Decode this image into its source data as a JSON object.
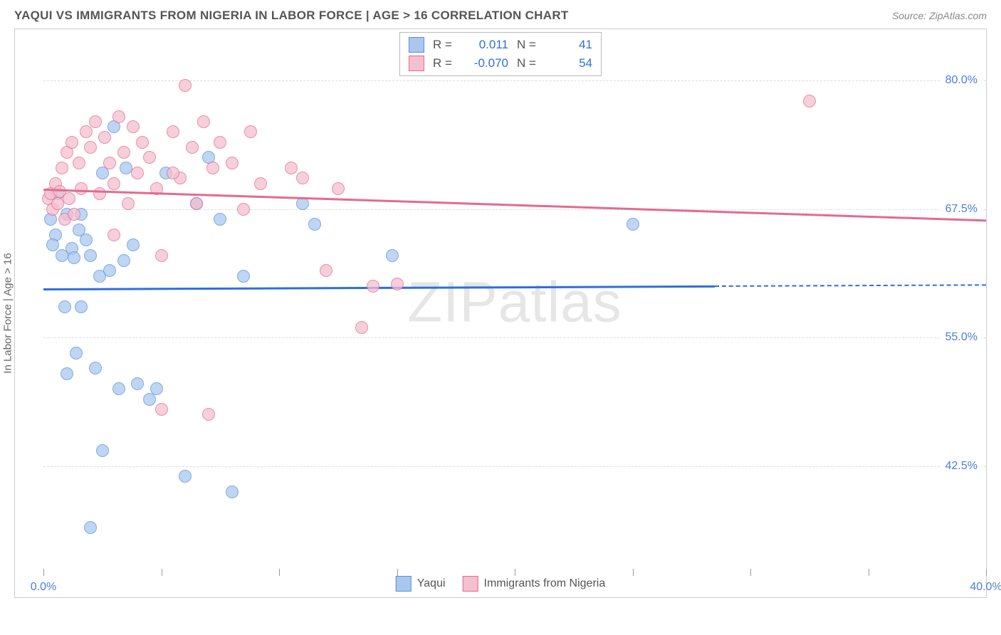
{
  "title": "YAQUI VS IMMIGRANTS FROM NIGERIA IN LABOR FORCE | AGE > 16 CORRELATION CHART",
  "source": "Source: ZipAtlas.com",
  "y_axis_label": "In Labor Force | Age > 16",
  "watermark": "ZIPatlas",
  "chart": {
    "type": "scatter",
    "xlim": [
      0,
      40
    ],
    "ylim": [
      32.5,
      85
    ],
    "x_tick_positions": [
      0,
      5,
      10,
      15,
      20,
      25,
      30,
      35,
      40
    ],
    "x_tick_labels": {
      "0": "0.0%",
      "40": "40.0%"
    },
    "y_gridlines": [
      42.5,
      55.0,
      67.5,
      80.0
    ],
    "y_tick_labels": [
      "42.5%",
      "55.0%",
      "67.5%",
      "80.0%"
    ],
    "grid_color": "#dddddd",
    "background_color": "#ffffff",
    "border_color": "#cccccc",
    "axis_label_color": "#4a7fd8",
    "axis_text_color": "#666666",
    "marker_radius": 9,
    "marker_stroke_width": 1.4,
    "marker_fill_opacity": 0.35,
    "series": [
      {
        "key": "yaqui",
        "label": "Yaqui",
        "color_fill": "#a9c7ef",
        "color_stroke": "#5a8fd6",
        "r": "0.011",
        "n": "41",
        "trend": {
          "y_start": 59.8,
          "y_end": 60.2,
          "x_max_solid": 28.5,
          "color": "#2d6fe0",
          "dash_after": true
        },
        "points": [
          [
            0.3,
            66.5
          ],
          [
            0.5,
            65.0
          ],
          [
            0.6,
            69.0
          ],
          [
            0.8,
            63.0
          ],
          [
            0.9,
            58.0
          ],
          [
            1.0,
            67.0
          ],
          [
            1.2,
            63.7
          ],
          [
            1.3,
            62.8
          ],
          [
            1.4,
            53.5
          ],
          [
            1.5,
            65.5
          ],
          [
            1.6,
            67.0
          ],
          [
            1.8,
            64.5
          ],
          [
            1.6,
            58.0
          ],
          [
            2.0,
            63.0
          ],
          [
            2.2,
            52.0
          ],
          [
            2.4,
            61.0
          ],
          [
            2.5,
            71.0
          ],
          [
            2.8,
            61.5
          ],
          [
            3.0,
            75.5
          ],
          [
            3.2,
            50.0
          ],
          [
            3.4,
            62.5
          ],
          [
            3.5,
            71.5
          ],
          [
            3.8,
            64.0
          ],
          [
            4.0,
            50.5
          ],
          [
            4.8,
            50.0
          ],
          [
            5.2,
            71.0
          ],
          [
            6.0,
            41.5
          ],
          [
            6.5,
            68.0
          ],
          [
            7.0,
            72.5
          ],
          [
            7.5,
            66.5
          ],
          [
            8.0,
            40.0
          ],
          [
            8.5,
            61.0
          ],
          [
            11.0,
            68.0
          ],
          [
            11.5,
            66.0
          ],
          [
            14.8,
            63.0
          ],
          [
            2.0,
            36.5
          ],
          [
            2.5,
            44.0
          ],
          [
            4.5,
            49.0
          ],
          [
            1.0,
            51.5
          ],
          [
            25.0,
            66.0
          ],
          [
            0.4,
            64.0
          ]
        ]
      },
      {
        "key": "nigeria",
        "label": "Immigrants from Nigeria",
        "color_fill": "#f4bfcf",
        "color_stroke": "#e46a8f",
        "r": "-0.070",
        "n": "54",
        "trend": {
          "y_start": 69.5,
          "y_end": 66.5,
          "x_max_solid": 40,
          "color": "#e46a8f",
          "dash_after": false
        },
        "points": [
          [
            0.2,
            68.5
          ],
          [
            0.3,
            69.0
          ],
          [
            0.4,
            67.5
          ],
          [
            0.5,
            70.0
          ],
          [
            0.6,
            68.0
          ],
          [
            0.7,
            69.2
          ],
          [
            0.8,
            71.5
          ],
          [
            0.9,
            66.5
          ],
          [
            1.0,
            73.0
          ],
          [
            1.1,
            68.5
          ],
          [
            1.2,
            74.0
          ],
          [
            1.3,
            67.0
          ],
          [
            1.5,
            72.0
          ],
          [
            1.6,
            69.5
          ],
          [
            1.8,
            75.0
          ],
          [
            2.0,
            73.5
          ],
          [
            2.2,
            76.0
          ],
          [
            2.4,
            69.0
          ],
          [
            2.6,
            74.5
          ],
          [
            2.8,
            72.0
          ],
          [
            3.0,
            70.0
          ],
          [
            3.2,
            76.5
          ],
          [
            3.4,
            73.0
          ],
          [
            3.6,
            68.0
          ],
          [
            3.8,
            75.5
          ],
          [
            4.0,
            71.0
          ],
          [
            4.2,
            74.0
          ],
          [
            4.5,
            72.5
          ],
          [
            4.8,
            69.5
          ],
          [
            5.0,
            63.0
          ],
          [
            5.5,
            75.0
          ],
          [
            5.8,
            70.5
          ],
          [
            6.0,
            79.5
          ],
          [
            6.3,
            73.5
          ],
          [
            6.5,
            68.0
          ],
          [
            6.8,
            76.0
          ],
          [
            7.2,
            71.5
          ],
          [
            7.5,
            74.0
          ],
          [
            8.0,
            72.0
          ],
          [
            8.5,
            67.5
          ],
          [
            8.8,
            75.0
          ],
          [
            9.2,
            70.0
          ],
          [
            10.5,
            71.5
          ],
          [
            11.0,
            70.5
          ],
          [
            12.5,
            69.5
          ],
          [
            5.0,
            48.0
          ],
          [
            7.0,
            47.5
          ],
          [
            12.0,
            61.5
          ],
          [
            13.5,
            56.0
          ],
          [
            14.0,
            60.0
          ],
          [
            15.0,
            60.2
          ],
          [
            32.5,
            78.0
          ],
          [
            5.5,
            71.0
          ],
          [
            3.0,
            65.0
          ]
        ]
      }
    ]
  },
  "legend_top": {
    "r_label": "R =",
    "n_label": "N ="
  },
  "legend_bottom_label1": "Yaqui",
  "legend_bottom_label2": "Immigrants from Nigeria"
}
